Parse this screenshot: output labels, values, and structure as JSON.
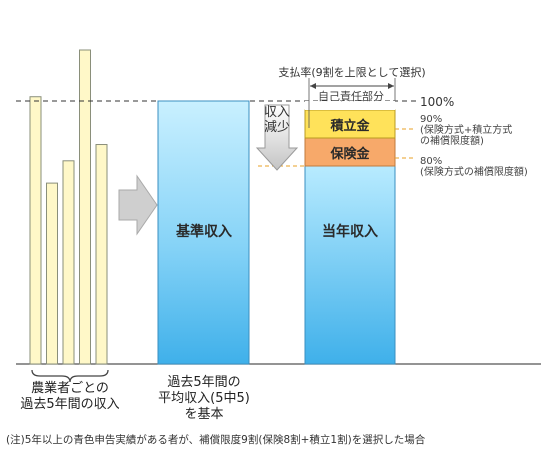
{
  "individual_incomes": [
    0.755,
    0.511,
    0.574,
    0.887,
    0.62
  ],
  "labels": {
    "base_income": "基準収入",
    "current_income": "当年収入",
    "savings": "積立金",
    "insurance": "保険金",
    "self_responsibility": "自己責任部分",
    "decrease_line1": "収入",
    "decrease_line2": "減少",
    "payout_rate": "支払率(9割を上限として選択)",
    "pct100": "100%",
    "pct90": "90%",
    "pct90_note1": "(保険方式+積立方式",
    "pct90_note2": "の補償限度額)",
    "pct80": "80%",
    "pct80_note": "(保険方式の補償限度額)",
    "farmer_caption1": "農業者ごとの",
    "farmer_caption2": "過去5年間の収入",
    "base_caption1": "過去5年間の",
    "base_caption2": "平均収入(5中5)",
    "base_caption3": "を基本",
    "footnote": "(注)5年以上の青色申告実績がある者が、補償限度9割(保険8割+積立1割)を選択した場合"
  },
  "colors": {
    "bar_fill": "#fff8c8",
    "bar_stroke": "#8a8f7a",
    "blue_top": "#c9f0ff",
    "blue_bottom": "#4ab6ec",
    "savings": "#ffe25a",
    "insurance": "#f7a96a",
    "arrow_gray": "#c8c8c8"
  }
}
